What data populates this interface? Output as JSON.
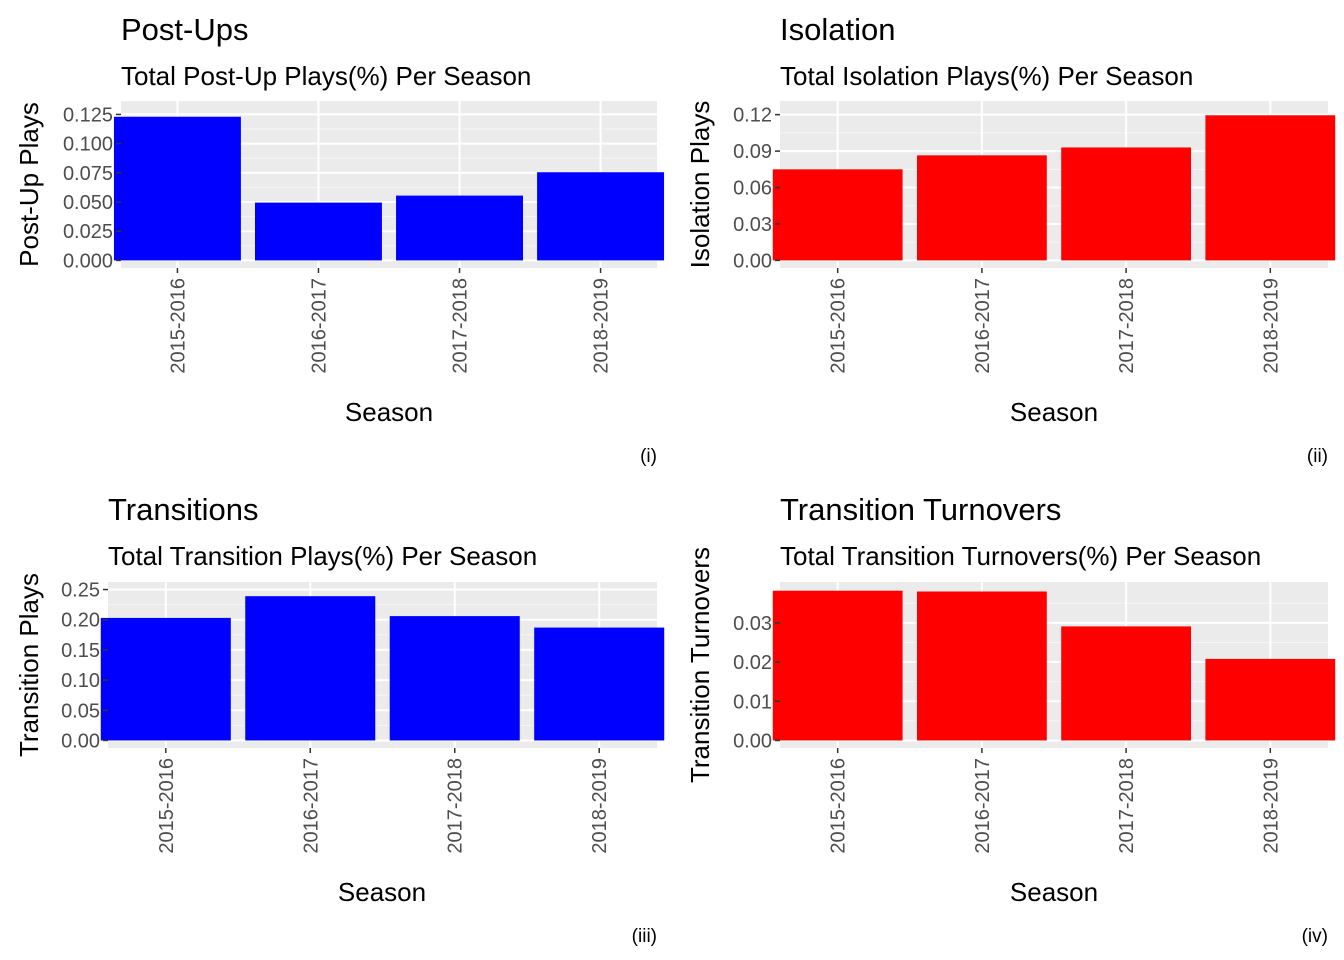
{
  "chart_data": [
    {
      "type": "bar",
      "title": "Post-Ups",
      "subtitle": "Total Post-Up Plays(%) Per Season",
      "xlabel": "Season",
      "ylabel": "Post-Up Plays",
      "caption": "(i)",
      "color": "#0000ff",
      "categories": [
        "2015-2016",
        "2016-2017",
        "2017-2018",
        "2018-2019"
      ],
      "values": [
        0.123,
        0.0495,
        0.0555,
        0.0755
      ],
      "ylim": [
        0,
        0.13
      ],
      "yticks": [
        0,
        0.025,
        0.05,
        0.075,
        0.1,
        0.125
      ],
      "ytick_labels": [
        "0.000",
        "0.025",
        "0.050",
        "0.075",
        "0.100",
        "0.125"
      ]
    },
    {
      "type": "bar",
      "title": "Isolation",
      "subtitle": "Total Isolation Plays(%) Per Season",
      "xlabel": "Season",
      "ylabel": "Isolation Plays",
      "caption": "(ii)",
      "color": "#ff0000",
      "categories": [
        "2015-2016",
        "2016-2017",
        "2017-2018",
        "2018-2019"
      ],
      "values": [
        0.075,
        0.0865,
        0.093,
        0.1195
      ],
      "ylim": [
        0,
        0.125
      ],
      "yticks": [
        0,
        0.03,
        0.06,
        0.09,
        0.12
      ],
      "ytick_labels": [
        "0.00",
        "0.03",
        "0.06",
        "0.09",
        "0.12"
      ]
    },
    {
      "type": "bar",
      "title": "Transitions",
      "subtitle": "Total Transition Plays(%) Per Season",
      "xlabel": "Season",
      "ylabel": "Transition Plays",
      "caption": "(iii)",
      "color": "#0000ff",
      "categories": [
        "2015-2016",
        "2016-2017",
        "2017-2018",
        "2018-2019"
      ],
      "values": [
        0.203,
        0.239,
        0.206,
        0.187
      ],
      "ylim": [
        0,
        0.25
      ],
      "yticks": [
        0,
        0.05,
        0.1,
        0.15,
        0.2,
        0.25
      ],
      "ytick_labels": [
        "0.00",
        "0.05",
        "0.10",
        "0.15",
        "0.20",
        "0.25"
      ]
    },
    {
      "type": "bar",
      "title": "Transition Turnovers",
      "subtitle": "Total Transition Turnovers(%) Per Season",
      "xlabel": "Season",
      "ylabel": "Transition Turnovers",
      "caption": "(iv)",
      "color": "#ff0000",
      "categories": [
        "2015-2016",
        "2016-2017",
        "2017-2018",
        "2018-2019"
      ],
      "values": [
        0.0382,
        0.038,
        0.0291,
        0.0208
      ],
      "ylim": [
        0,
        0.0385
      ],
      "yticks": [
        0,
        0.01,
        0.02,
        0.03
      ],
      "ytick_labels": [
        "0.00",
        "0.01",
        "0.02",
        "0.03"
      ]
    }
  ]
}
